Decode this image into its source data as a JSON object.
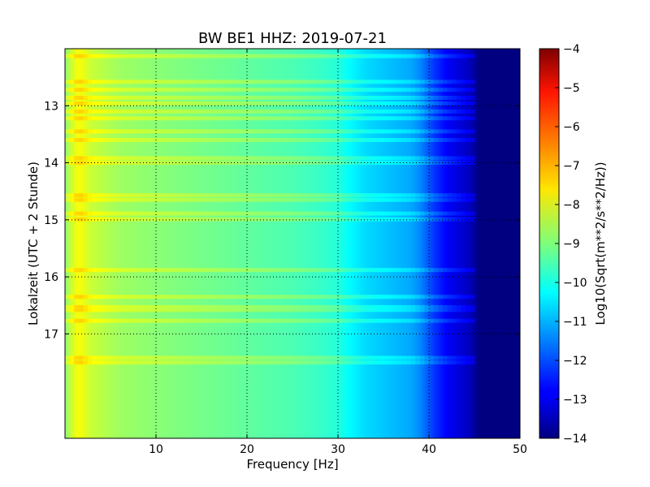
{
  "chart_data": {
    "type": "heatmap",
    "title": "BW BE1 HHZ: 2019-07-21",
    "xlabel": "Frequency [Hz]",
    "ylabel": "Lokalzeit (UTC + 2 Stunde)",
    "xlim": [
      0,
      50
    ],
    "ylim": [
      12.0,
      18.83
    ],
    "y_inverted": true,
    "x_ticks": [
      10,
      20,
      30,
      40,
      50
    ],
    "x_tick_labels": [
      "10",
      "20",
      "30",
      "40",
      "50"
    ],
    "y_ticks": [
      13,
      14,
      15,
      16,
      17
    ],
    "y_tick_labels": [
      "13",
      "14",
      "15",
      "16",
      "17"
    ],
    "grid": true,
    "colormap": "jet",
    "colorbar": {
      "label": "Log10(Sqrt(m**2/s**2/Hz))",
      "range": [
        -14,
        -4
      ],
      "ticks": [
        -4,
        -5,
        -6,
        -7,
        -8,
        -9,
        -10,
        -11,
        -12,
        -13,
        -14
      ],
      "tick_labels": [
        "−4",
        "−5",
        "−6",
        "−7",
        "−8",
        "−9",
        "−10",
        "−11",
        "−12",
        "−13",
        "−14"
      ]
    },
    "spectrum_profile": [
      {
        "f": 0.0,
        "v": -8.9
      },
      {
        "f": 0.8,
        "v": -8.2
      },
      {
        "f": 1.5,
        "v": -7.8
      },
      {
        "f": 3.0,
        "v": -8.3
      },
      {
        "f": 6.0,
        "v": -8.7
      },
      {
        "f": 10.0,
        "v": -8.9
      },
      {
        "f": 15.0,
        "v": -9.1
      },
      {
        "f": 20.0,
        "v": -9.3
      },
      {
        "f": 25.0,
        "v": -9.5
      },
      {
        "f": 28.0,
        "v": -9.7
      },
      {
        "f": 30.0,
        "v": -9.9
      },
      {
        "f": 31.0,
        "v": -10.2
      },
      {
        "f": 33.0,
        "v": -10.6
      },
      {
        "f": 36.0,
        "v": -10.9
      },
      {
        "f": 38.0,
        "v": -11.1
      },
      {
        "f": 39.0,
        "v": -11.4
      },
      {
        "f": 40.5,
        "v": -12.2
      },
      {
        "f": 42.0,
        "v": -12.8
      },
      {
        "f": 44.5,
        "v": -13.4
      },
      {
        "f": 45.5,
        "v": -14.0
      },
      {
        "f": 50.0,
        "v": -14.0
      }
    ],
    "bright_bands_hours": [
      12.13,
      12.58,
      12.72,
      12.86,
      12.96,
      13.1,
      13.22,
      13.45,
      13.6,
      13.92,
      14.0,
      14.57,
      14.65,
      14.89,
      14.99,
      15.88,
      16.35,
      16.53,
      16.58,
      16.77,
      17.42,
      17.5
    ]
  }
}
